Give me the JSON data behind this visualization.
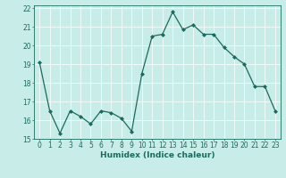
{
  "x": [
    0,
    1,
    2,
    3,
    4,
    5,
    6,
    7,
    8,
    9,
    10,
    11,
    12,
    13,
    14,
    15,
    16,
    17,
    18,
    19,
    20,
    21,
    22,
    23
  ],
  "y": [
    19.1,
    16.5,
    15.3,
    16.5,
    16.2,
    15.8,
    16.5,
    16.4,
    16.1,
    15.4,
    18.5,
    20.5,
    20.6,
    21.8,
    20.85,
    21.1,
    20.6,
    20.6,
    19.9,
    19.4,
    19.0,
    17.8,
    17.8,
    16.5
  ],
  "xlabel": "Humidex (Indice chaleur)",
  "ylim": [
    15,
    22
  ],
  "xlim": [
    -0.5,
    23.5
  ],
  "yticks": [
    15,
    16,
    17,
    18,
    19,
    20,
    21,
    22
  ],
  "xticks": [
    0,
    1,
    2,
    3,
    4,
    5,
    6,
    7,
    8,
    9,
    10,
    11,
    12,
    13,
    14,
    15,
    16,
    17,
    18,
    19,
    20,
    21,
    22,
    23
  ],
  "line_color": "#1a6b5e",
  "marker_color": "#1a6b5e",
  "bg_color": "#c8ede8",
  "grid_color": "#ffffff",
  "axes_color": "#1a6b5e",
  "xlabel_fontsize": 6.5,
  "tick_fontsize": 5.5
}
